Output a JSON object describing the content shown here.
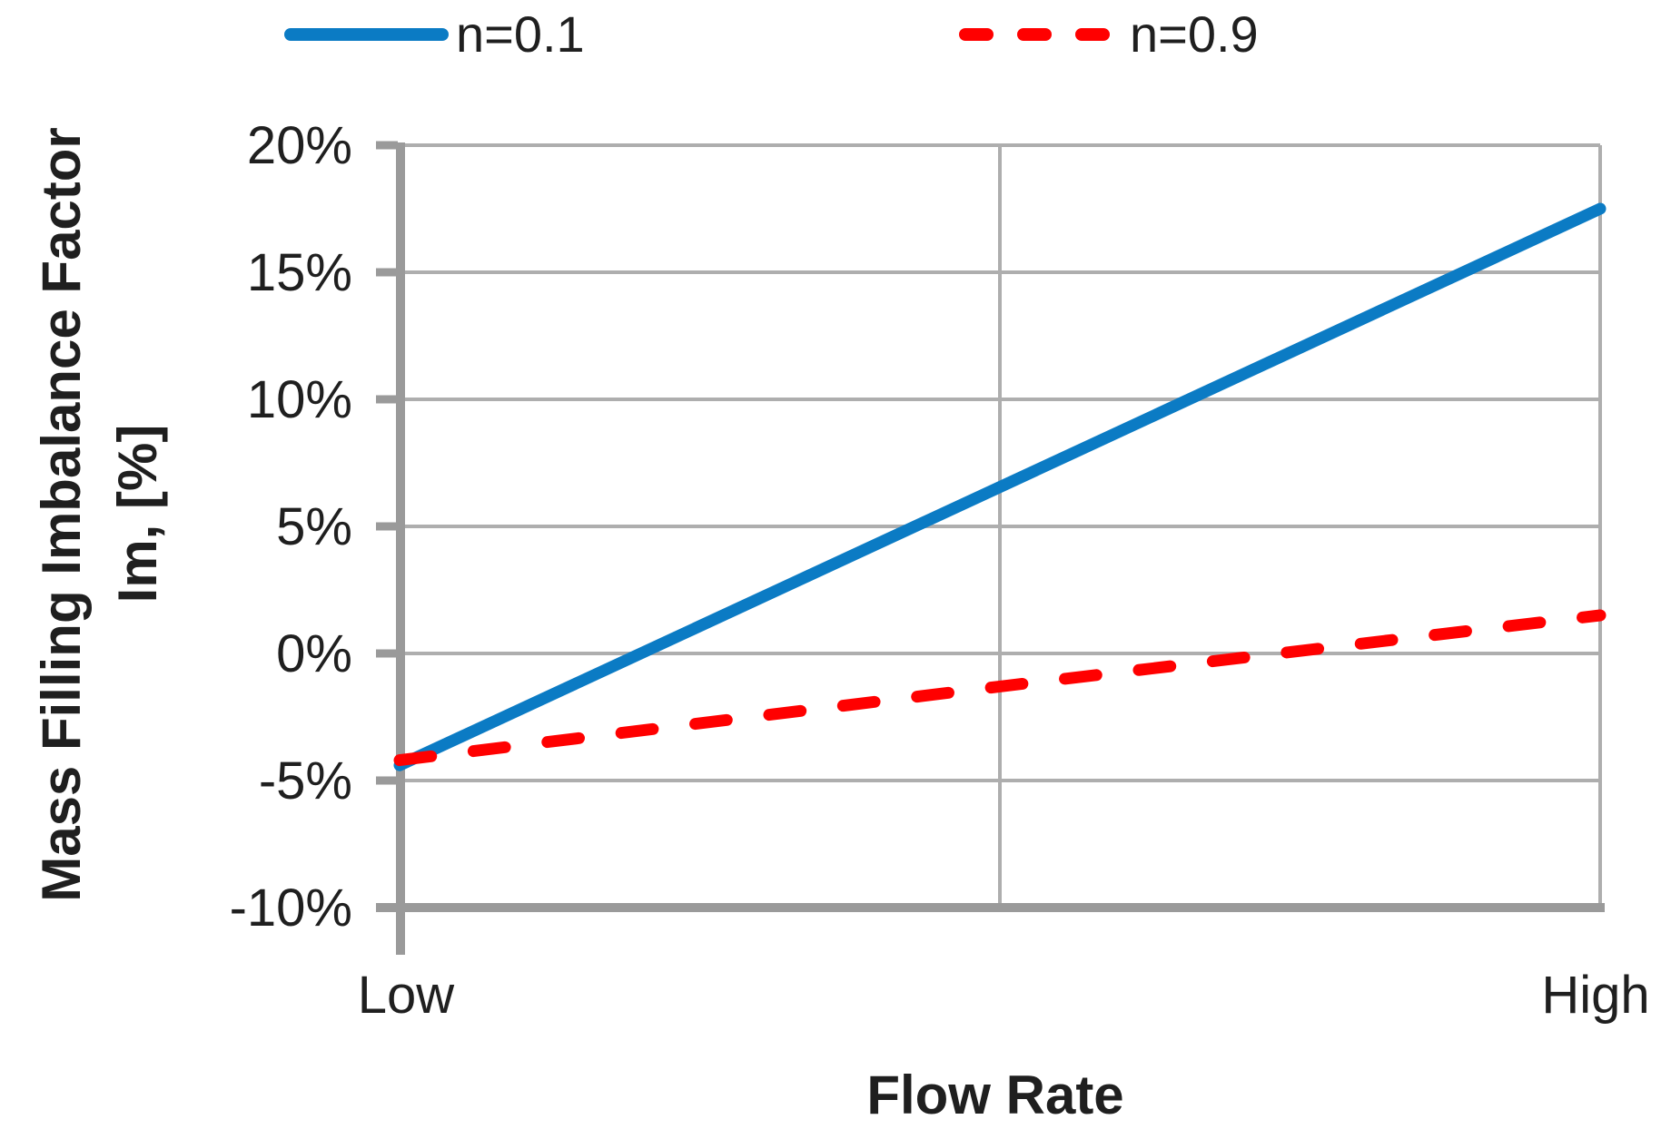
{
  "chart_data": {
    "type": "line",
    "title": "",
    "xlabel": "Flow Rate",
    "ylabel_line1": "Mass Filling Imbalance Factor",
    "ylabel_line2": "Im, [%]",
    "x_categories": [
      "Low",
      "High"
    ],
    "ylim": [
      -10,
      20
    ],
    "ytick_step_percent": 5,
    "ytick_labels": [
      "20%",
      "15%",
      "10%",
      "5%",
      "0%",
      "-5%",
      "-10%"
    ],
    "grid": {
      "horizontal": true,
      "vertical_divisions": 2
    },
    "legend_position": "top",
    "series": [
      {
        "name": "n=0.1",
        "color": "#0b7bc4",
        "style": "solid",
        "x": [
          0,
          1
        ],
        "values_percent": [
          -4.4,
          17.5
        ]
      },
      {
        "name": "n=0.9",
        "color": "#ff0000",
        "style": "dashed",
        "x": [
          0,
          0.5,
          1
        ],
        "values_percent": [
          -4.2,
          -1.3,
          1.5
        ]
      }
    ],
    "colors": {
      "axis": "#9a9a9a",
      "gridline": "#aeaeae",
      "text": "#1f1f1f",
      "background": "#ffffff"
    }
  }
}
